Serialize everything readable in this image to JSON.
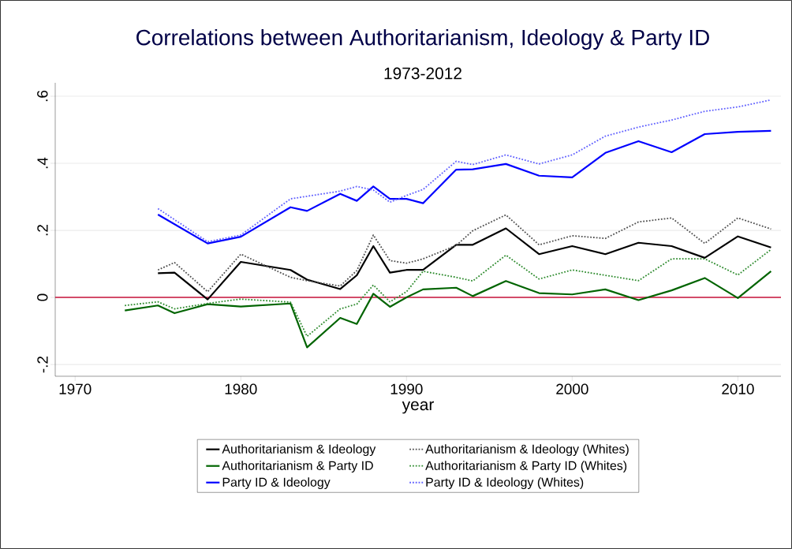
{
  "chart_data": {
    "type": "line",
    "title": "Correlations between Authoritarianism, Ideology & Party ID",
    "subtitle": "1973-2012",
    "xlabel": "year",
    "xlim": [
      1968.8,
      2012.6
    ],
    "ylim": [
      -0.235,
      0.64
    ],
    "xticks": [
      1970,
      1980,
      1990,
      2000,
      2010
    ],
    "yticks": [
      {
        "value": -0.2,
        "label": "-.2"
      },
      0,
      {
        "value": 0.2,
        "label": ".2"
      },
      {
        "value": 0.4,
        "label": ".4"
      },
      {
        "value": 0.6,
        "label": ".6"
      }
    ],
    "grid": "y",
    "legend": "bottom",
    "ref_lines": [
      {
        "axis": "y",
        "value": 0,
        "color": "#c8143c"
      }
    ],
    "series": [
      {
        "name": "Authoritarianism & Ideology",
        "color": "#000000",
        "line_style": "solid",
        "x": [
          1975,
          1976,
          1978,
          1980,
          1983,
          1984,
          1986,
          1987,
          1988,
          1989,
          1990,
          1991,
          1993,
          1994,
          1996,
          1998,
          2000,
          2002,
          2004,
          2006,
          2008,
          2010,
          2012
        ],
        "values": [
          0.072,
          0.074,
          -0.006,
          0.106,
          0.082,
          0.053,
          0.025,
          0.066,
          0.153,
          0.074,
          0.082,
          0.082,
          0.157,
          0.157,
          0.206,
          0.129,
          0.153,
          0.129,
          0.163,
          0.153,
          0.118,
          0.182,
          0.149
        ]
      },
      {
        "name": "Authoritarianism & Ideology (Whites)",
        "color": "#505050",
        "line_style": "dotted",
        "x": [
          1975,
          1976,
          1978,
          1980,
          1983,
          1984,
          1986,
          1987,
          1988,
          1989,
          1990,
          1991,
          1993,
          1994,
          1996,
          1998,
          2000,
          2002,
          2004,
          2006,
          2008,
          2010,
          2012
        ],
        "values": [
          0.082,
          0.104,
          0.017,
          0.129,
          0.06,
          0.05,
          0.034,
          0.08,
          0.186,
          0.11,
          0.102,
          0.115,
          0.155,
          0.199,
          0.246,
          0.157,
          0.184,
          0.176,
          0.225,
          0.237,
          0.161,
          0.237,
          0.204
        ]
      },
      {
        "name": "Authoritarianism & Party ID",
        "color": "#006400",
        "line_style": "solid",
        "x": [
          1973,
          1975,
          1976,
          1978,
          1980,
          1983,
          1984,
          1986,
          1987,
          1988,
          1989,
          1990,
          1991,
          1993,
          1994,
          1996,
          1998,
          2000,
          2002,
          2004,
          2006,
          2008,
          2010,
          2012
        ],
        "values": [
          -0.039,
          -0.024,
          -0.047,
          -0.02,
          -0.027,
          -0.018,
          -0.149,
          -0.061,
          -0.079,
          0.011,
          -0.028,
          0.0,
          0.024,
          0.029,
          0.004,
          0.049,
          0.013,
          0.009,
          0.024,
          -0.008,
          0.021,
          0.058,
          -0.002,
          0.078
        ]
      },
      {
        "name": "Authoritarianism & Party ID (Whites)",
        "color": "#2e8b2e",
        "line_style": "dotted",
        "x": [
          1973,
          1975,
          1976,
          1978,
          1980,
          1983,
          1984,
          1986,
          1987,
          1988,
          1989,
          1990,
          1991,
          1993,
          1994,
          1996,
          1998,
          2000,
          2002,
          2004,
          2006,
          2008,
          2010,
          2012
        ],
        "values": [
          -0.024,
          -0.013,
          -0.034,
          -0.018,
          -0.005,
          -0.014,
          -0.116,
          -0.034,
          -0.02,
          0.037,
          -0.013,
          0.017,
          0.078,
          0.06,
          0.049,
          0.126,
          0.055,
          0.082,
          0.066,
          0.05,
          0.115,
          0.115,
          0.067,
          0.143
        ]
      },
      {
        "name": "Party ID & Ideology",
        "color": "#0000ff",
        "line_style": "solid",
        "x": [
          1975,
          1978,
          1980,
          1983,
          1984,
          1986,
          1987,
          1988,
          1989,
          1990,
          1991,
          1993,
          1994,
          1996,
          1998,
          2000,
          2002,
          2004,
          2006,
          2008,
          2010,
          2012
        ],
        "values": [
          0.247,
          0.161,
          0.181,
          0.269,
          0.258,
          0.309,
          0.288,
          0.331,
          0.294,
          0.294,
          0.281,
          0.381,
          0.382,
          0.398,
          0.363,
          0.358,
          0.431,
          0.466,
          0.433,
          0.487,
          0.494,
          0.497
        ]
      },
      {
        "name": "Party ID & Ideology (Whites)",
        "color": "#6060ff",
        "line_style": "dotted",
        "x": [
          1975,
          1978,
          1980,
          1983,
          1986,
          1987,
          1988,
          1989,
          1990,
          1991,
          1993,
          1994,
          1996,
          1998,
          2000,
          2002,
          2004,
          2006,
          2008,
          2010,
          2012
        ],
        "values": [
          0.265,
          0.166,
          0.186,
          0.294,
          0.317,
          0.331,
          0.32,
          0.284,
          0.304,
          0.322,
          0.406,
          0.396,
          0.425,
          0.398,
          0.425,
          0.481,
          0.508,
          0.529,
          0.555,
          0.568,
          0.589
        ]
      }
    ]
  }
}
